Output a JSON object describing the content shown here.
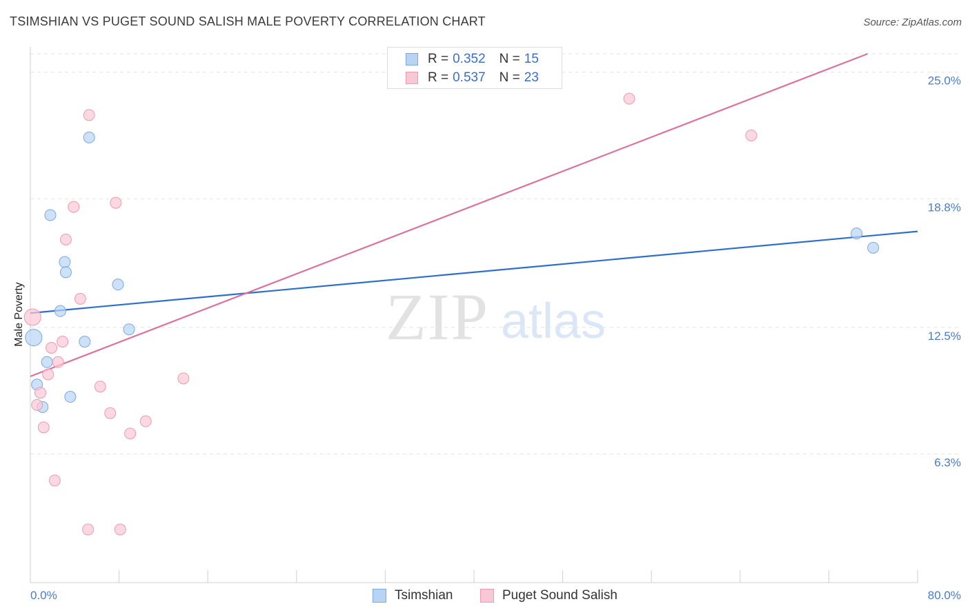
{
  "header": {
    "title": "TSIMSHIAN VS PUGET SOUND SALISH MALE POVERTY CORRELATION CHART",
    "source": "Source: ZipAtlas.com"
  },
  "watermark": {
    "zip": "ZIP",
    "atlas": "atlas"
  },
  "legend": {
    "r_label": "R =",
    "n_label": "N =",
    "items": [
      {
        "name": "Tsimshian",
        "r": "0.352",
        "n": "15",
        "fill": "#b8d4f5",
        "stroke": "#7aa8e0"
      },
      {
        "name": "Puget Sound Salish",
        "r": "0.537",
        "n": "23",
        "fill": "#f9c8d6",
        "stroke": "#ec9ab2"
      }
    ]
  },
  "chart_data": {
    "type": "scatter",
    "title": "TSIMSHIAN VS PUGET SOUND SALISH MALE POVERTY CORRELATION CHART",
    "xlabel": "",
    "ylabel": "Male Poverty",
    "xlim": [
      0,
      80
    ],
    "ylim": [
      0,
      25.9
    ],
    "x_tick_labels": [
      "0.0%",
      "80.0%"
    ],
    "y_ticks": [
      6.3,
      12.5,
      18.8,
      25.0
    ],
    "y_tick_labels": [
      "6.3%",
      "12.5%",
      "18.8%",
      "25.0%"
    ],
    "grid": true,
    "series": [
      {
        "name": "Tsimshian",
        "color": "#7aa8e0",
        "fill": "#b8d4f5",
        "trend_color": "#2e6fcc",
        "trend": {
          "x": [
            0,
            80
          ],
          "y": [
            13.2,
            17.2
          ]
        },
        "points": [
          {
            "x": 0.3,
            "y": 12.0
          },
          {
            "x": 0.6,
            "y": 9.7
          },
          {
            "x": 1.1,
            "y": 8.6
          },
          {
            "x": 1.5,
            "y": 10.8
          },
          {
            "x": 1.8,
            "y": 18.0
          },
          {
            "x": 2.7,
            "y": 13.3
          },
          {
            "x": 3.1,
            "y": 15.7
          },
          {
            "x": 3.2,
            "y": 15.2
          },
          {
            "x": 3.6,
            "y": 9.1
          },
          {
            "x": 4.9,
            "y": 11.8
          },
          {
            "x": 5.3,
            "y": 21.8
          },
          {
            "x": 7.9,
            "y": 14.6
          },
          {
            "x": 8.9,
            "y": 12.4
          },
          {
            "x": 74.5,
            "y": 17.1
          },
          {
            "x": 76.0,
            "y": 16.4
          }
        ]
      },
      {
        "name": "Puget Sound Salish",
        "color": "#ec9ab2",
        "fill": "#f9c8d6",
        "trend_color": "#e0709a",
        "trend": {
          "x": [
            0,
            75.5
          ],
          "y": [
            10.1,
            25.9
          ]
        },
        "points": [
          {
            "x": 0.2,
            "y": 13.0
          },
          {
            "x": 0.6,
            "y": 8.7
          },
          {
            "x": 0.9,
            "y": 9.3
          },
          {
            "x": 1.2,
            "y": 7.6
          },
          {
            "x": 1.6,
            "y": 10.2
          },
          {
            "x": 1.9,
            "y": 11.5
          },
          {
            "x": 2.2,
            "y": 5.0
          },
          {
            "x": 2.5,
            "y": 10.8
          },
          {
            "x": 2.9,
            "y": 11.8
          },
          {
            "x": 3.2,
            "y": 16.8
          },
          {
            "x": 3.9,
            "y": 18.4
          },
          {
            "x": 4.5,
            "y": 13.9
          },
          {
            "x": 5.2,
            "y": 2.6
          },
          {
            "x": 5.3,
            "y": 22.9
          },
          {
            "x": 6.3,
            "y": 9.6
          },
          {
            "x": 7.2,
            "y": 8.3
          },
          {
            "x": 7.7,
            "y": 18.6
          },
          {
            "x": 8.1,
            "y": 2.6
          },
          {
            "x": 9.0,
            "y": 7.3
          },
          {
            "x": 10.4,
            "y": 7.9
          },
          {
            "x": 13.8,
            "y": 10.0
          },
          {
            "x": 54.0,
            "y": 23.7
          },
          {
            "x": 65.0,
            "y": 21.9
          }
        ]
      }
    ]
  }
}
